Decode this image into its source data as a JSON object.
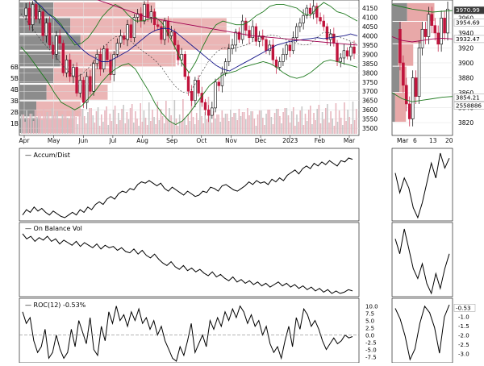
{
  "chart_data": [
    {
      "type": "candlestick",
      "panel": "price",
      "x_labels": [
        "Apr",
        "May",
        "Jun",
        "Jul",
        "Aug",
        "Sep",
        "Oct",
        "Nov",
        "Dec",
        "2023",
        "Feb",
        "Mar"
      ],
      "y_ticks": [
        3500,
        3550,
        3600,
        3650,
        3700,
        3750,
        3800,
        3850,
        3900,
        3950,
        4000,
        4050,
        4100,
        4150
      ],
      "ylim": [
        3470,
        4185
      ],
      "volume_axis_ticks": [
        "1B",
        "2B",
        "3B",
        "4B",
        "5B",
        "6B"
      ],
      "volume_by_price": [
        {
          "low": 3470,
          "high": 3560,
          "up": 0.1,
          "down": 0.06
        },
        {
          "low": 3560,
          "high": 3650,
          "up": 0.13,
          "down": 0.05
        },
        {
          "low": 3650,
          "high": 3740,
          "up": 0.18,
          "down": 0.08
        },
        {
          "low": 3740,
          "high": 3830,
          "up": 0.17,
          "down": 0.1
        },
        {
          "low": 3830,
          "high": 3920,
          "up": 0.34,
          "down": 0.12
        },
        {
          "low": 3920,
          "high": 4010,
          "up": 0.44,
          "down": 0.18
        },
        {
          "low": 4010,
          "high": 4100,
          "up": 0.46,
          "down": 0.15
        },
        {
          "low": 4100,
          "high": 4185,
          "up": 0.3,
          "down": 0.1
        }
      ],
      "series_trace": {
        "close": [
          4110,
          4150,
          4060,
          4170,
          4090,
          4130,
          4000,
          4070,
          3950,
          3900,
          4000,
          3960,
          3800,
          3870,
          3780,
          3830,
          3690,
          3760,
          3640,
          3780,
          3700,
          3850,
          3900,
          3820,
          3930,
          3870,
          3790,
          3900,
          3960,
          4000,
          3980,
          4060,
          3990,
          4100,
          4120,
          4080,
          4170,
          4100,
          4130,
          4060,
          4050,
          3980,
          4080,
          4000,
          4020,
          3950,
          3870,
          3900,
          3780,
          3700,
          3650,
          3760,
          3690,
          3640,
          3600,
          3570,
          3610,
          3750,
          3730,
          3800,
          3860,
          3930,
          3950,
          4020,
          3980,
          4080,
          4030,
          3990,
          4050,
          3970,
          4000,
          3980,
          3920,
          3950,
          3870,
          3830,
          3860,
          3900,
          3950,
          3920,
          3990,
          4050,
          4070,
          4110,
          4150,
          4120,
          4160,
          4100,
          4080,
          4050,
          3980,
          4010,
          3960,
          3860,
          3880,
          3920,
          3890,
          3940,
          3905
        ],
        "sma_50": [
          4240,
          4220,
          4190,
          4160,
          4120,
          4090,
          4050,
          4010,
          3970,
          3930,
          3900,
          3880,
          3860,
          3860,
          3880,
          3900,
          3920,
          3950,
          3980,
          4010,
          4030,
          4040,
          4040,
          4020,
          3990,
          3960,
          3930,
          3900,
          3870,
          3840,
          3820,
          3810,
          3830,
          3850,
          3870,
          3890,
          3910,
          3930,
          3950,
          3960,
          3970,
          3975,
          3980,
          3985,
          3990,
          3985,
          3990,
          3995,
          4000,
          4010,
          4000
        ],
        "sma_200": [
          4340,
          4320,
          4300,
          4280,
          4260,
          4240,
          4220,
          4200,
          4180,
          4160,
          4140,
          4120,
          4100,
          4090,
          4080,
          4070,
          4060,
          4050,
          4040,
          4030,
          4020,
          4010,
          4000,
          3995,
          3990,
          3985,
          3980,
          3975,
          3970,
          3965,
          3960,
          3955,
          3950
        ],
        "bollinger_upper": [
          4300,
          4250,
          4200,
          4150,
          4120,
          4100,
          4060,
          4000,
          3950,
          3960,
          3990,
          4040,
          4100,
          4140,
          4170,
          4150,
          4110,
          4080,
          4080,
          4090,
          4100,
          4070,
          4000,
          3930,
          3850,
          3800,
          3860,
          3940,
          4010,
          4060,
          4080,
          4070,
          4060,
          4060,
          4080,
          4110,
          4130,
          4160,
          4170,
          4170,
          4160,
          4150,
          4120,
          4110,
          4150,
          4180,
          4160,
          4130,
          4120,
          4100,
          4080
        ],
        "bollinger_lower": [
          3940,
          3900,
          3850,
          3800,
          3750,
          3690,
          3640,
          3620,
          3600,
          3620,
          3660,
          3700,
          3750,
          3790,
          3820,
          3840,
          3850,
          3820,
          3760,
          3700,
          3630,
          3580,
          3540,
          3520,
          3540,
          3580,
          3630,
          3680,
          3730,
          3760,
          3790,
          3800,
          3810,
          3830,
          3840,
          3850,
          3860,
          3850,
          3830,
          3800,
          3780,
          3770,
          3780,
          3800,
          3830,
          3860,
          3870,
          3860,
          3850,
          3840,
          3830
        ]
      },
      "price_labels": [
        "4150",
        "4100",
        "4050",
        "4000",
        "3950",
        "3900",
        "3850",
        "3800",
        "3750",
        "3700",
        "3650",
        "3600",
        "3550",
        "3500"
      ]
    },
    {
      "type": "line",
      "panel": "accum_dist",
      "title": "Accum/Dist",
      "x_labels": [
        "Apr",
        "May",
        "Jun",
        "Jul",
        "Aug",
        "Sep",
        "Oct",
        "Nov",
        "Dec",
        "2023",
        "Feb",
        "Mar"
      ],
      "values": [
        10,
        18,
        14,
        22,
        16,
        20,
        14,
        10,
        16,
        12,
        8,
        6,
        10,
        14,
        10,
        18,
        14,
        22,
        18,
        26,
        30,
        26,
        34,
        38,
        34,
        42,
        46,
        44,
        50,
        48,
        56,
        60,
        58,
        62,
        58,
        54,
        58,
        50,
        46,
        52,
        48,
        44,
        40,
        46,
        42,
        38,
        40,
        46,
        44,
        52,
        50,
        46,
        54,
        56,
        52,
        48,
        46,
        50,
        54,
        60,
        56,
        62,
        58,
        60,
        56,
        64,
        60,
        66,
        62,
        70,
        74,
        78,
        72,
        80,
        84,
        80,
        88,
        84,
        90,
        86,
        92,
        88,
        84,
        92,
        90,
        96,
        94
      ]
    },
    {
      "type": "line",
      "panel": "obv",
      "title": "On Balance Vol",
      "x_labels": [
        "Apr",
        "May",
        "Jun",
        "Jul",
        "Aug",
        "Sep",
        "Oct",
        "Nov",
        "Dec",
        "2023",
        "Feb",
        "Mar"
      ],
      "values": [
        96,
        88,
        92,
        84,
        90,
        86,
        92,
        84,
        88,
        80,
        86,
        82,
        78,
        84,
        76,
        82,
        78,
        74,
        80,
        72,
        78,
        74,
        76,
        70,
        74,
        68,
        66,
        72,
        64,
        70,
        62,
        58,
        64,
        56,
        50,
        46,
        52,
        44,
        40,
        46,
        38,
        42,
        36,
        40,
        34,
        30,
        36,
        28,
        32,
        26,
        22,
        28,
        20,
        24,
        18,
        22,
        16,
        20,
        14,
        18,
        12,
        16,
        20,
        14,
        18,
        12,
        16,
        10,
        14,
        8,
        12,
        6,
        10,
        4,
        8,
        2,
        6,
        2,
        4,
        8,
        6
      ]
    },
    {
      "type": "line",
      "panel": "roc",
      "title": "ROC(12) -0.53%",
      "y_ticks": [
        10.0,
        7.5,
        5.0,
        2.5,
        0.0,
        -2.5,
        -5.0,
        -7.5
      ],
      "ylim": [
        -9,
        11
      ],
      "values": [
        8,
        4,
        6,
        -2,
        -6,
        -4,
        2,
        -8,
        -6,
        0,
        -5,
        -8,
        -6,
        2,
        -4,
        5,
        1,
        -3,
        6,
        -5,
        -7,
        3,
        -2,
        8,
        4,
        10,
        5,
        7,
        3,
        8,
        5,
        9,
        4,
        6,
        2,
        5,
        0,
        3,
        -2,
        -5,
        -8,
        -9,
        -4,
        -7,
        -2,
        4,
        -6,
        -3,
        0,
        -4,
        5,
        2,
        6,
        3,
        8,
        5,
        9,
        6,
        10,
        8,
        4,
        7,
        3,
        5,
        0,
        3,
        -3,
        -6,
        -4,
        -8,
        -2,
        3,
        -4,
        6,
        2,
        9,
        7,
        3,
        5,
        2,
        -2,
        -5,
        -3,
        -1,
        -3,
        -2,
        0,
        -1,
        -0.53
      ]
    }
  ],
  "right_price": {
    "x_labels": [
      "Mar",
      "6",
      "13",
      "20"
    ],
    "y_ticks": [
      3820,
      3840,
      3860,
      3880,
      3900,
      3920,
      3940,
      3960
    ],
    "ylim": [
      3805,
      3982
    ],
    "tags": [
      {
        "value": 3970.99,
        "label": "3970.99",
        "style": "dark"
      },
      {
        "value": 3954.69,
        "label": "3954.69",
        "style": "light"
      },
      {
        "value": 3932.47,
        "label": "3932.47",
        "style": "light"
      },
      {
        "value": 3854.21,
        "label": "3854.21",
        "style": "light"
      },
      {
        "value": 3852.0,
        "label": "2558886",
        "style": "light"
      }
    ]
  },
  "right_roc": {
    "y_ticks": [
      -1.0,
      -1.5,
      -2.0,
      -2.5,
      -3.0
    ],
    "ylim": [
      -3.4,
      -0.3
    ],
    "latest_label": "-0.53"
  }
}
